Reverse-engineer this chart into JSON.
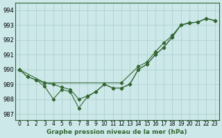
{
  "title": "Graphe pression niveau de la mer (hPa)",
  "bg_color": "#cce8e8",
  "grid_color": "#aacccc",
  "line_color": "#336633",
  "xlim": [
    -0.5,
    23.5
  ],
  "ylim": [
    986.6,
    994.5
  ],
  "yticks": [
    987,
    988,
    989,
    990,
    991,
    992,
    993,
    994
  ],
  "xtick_labels": [
    "0",
    "1",
    "2",
    "3",
    "4",
    "5",
    "6",
    "7",
    "8",
    "9",
    "10",
    "11",
    "12",
    "13",
    "14",
    "15",
    "16",
    "17",
    "18",
    "19",
    "20",
    "21",
    "22",
    "23"
  ],
  "curve1_x": [
    0,
    1,
    2,
    3,
    4,
    5,
    6,
    7,
    8,
    9,
    10,
    11,
    12,
    13,
    14,
    15,
    16,
    17,
    18,
    19,
    20,
    21,
    22,
    23
  ],
  "curve1_y": [
    990.0,
    989.5,
    989.3,
    988.85,
    988.0,
    988.65,
    988.5,
    987.4,
    988.15,
    988.5,
    989.0,
    988.75,
    988.75,
    989.0,
    990.0,
    990.35,
    991.0,
    991.5,
    992.2,
    993.0,
    993.15,
    993.2,
    993.45,
    993.3
  ],
  "curve2_x": [
    0,
    1,
    2,
    3,
    4,
    5,
    6,
    7,
    8,
    9,
    10,
    11,
    12,
    13,
    14,
    15,
    16,
    17,
    18,
    19,
    20,
    21,
    22,
    23
  ],
  "curve2_y": [
    990.0,
    989.5,
    989.3,
    989.1,
    989.0,
    988.8,
    988.65,
    988.0,
    988.2,
    988.5,
    989.0,
    988.75,
    988.75,
    989.0,
    990.0,
    990.35,
    991.0,
    991.5,
    992.2,
    993.0,
    993.15,
    993.2,
    993.45,
    993.3
  ],
  "curve3_x": [
    0,
    3,
    12,
    14,
    15,
    16,
    17,
    18,
    19,
    20,
    21,
    22,
    23
  ],
  "curve3_y": [
    990.0,
    989.1,
    989.1,
    990.2,
    990.5,
    991.2,
    991.8,
    992.3,
    993.0,
    993.15,
    993.2,
    993.45,
    993.3
  ]
}
